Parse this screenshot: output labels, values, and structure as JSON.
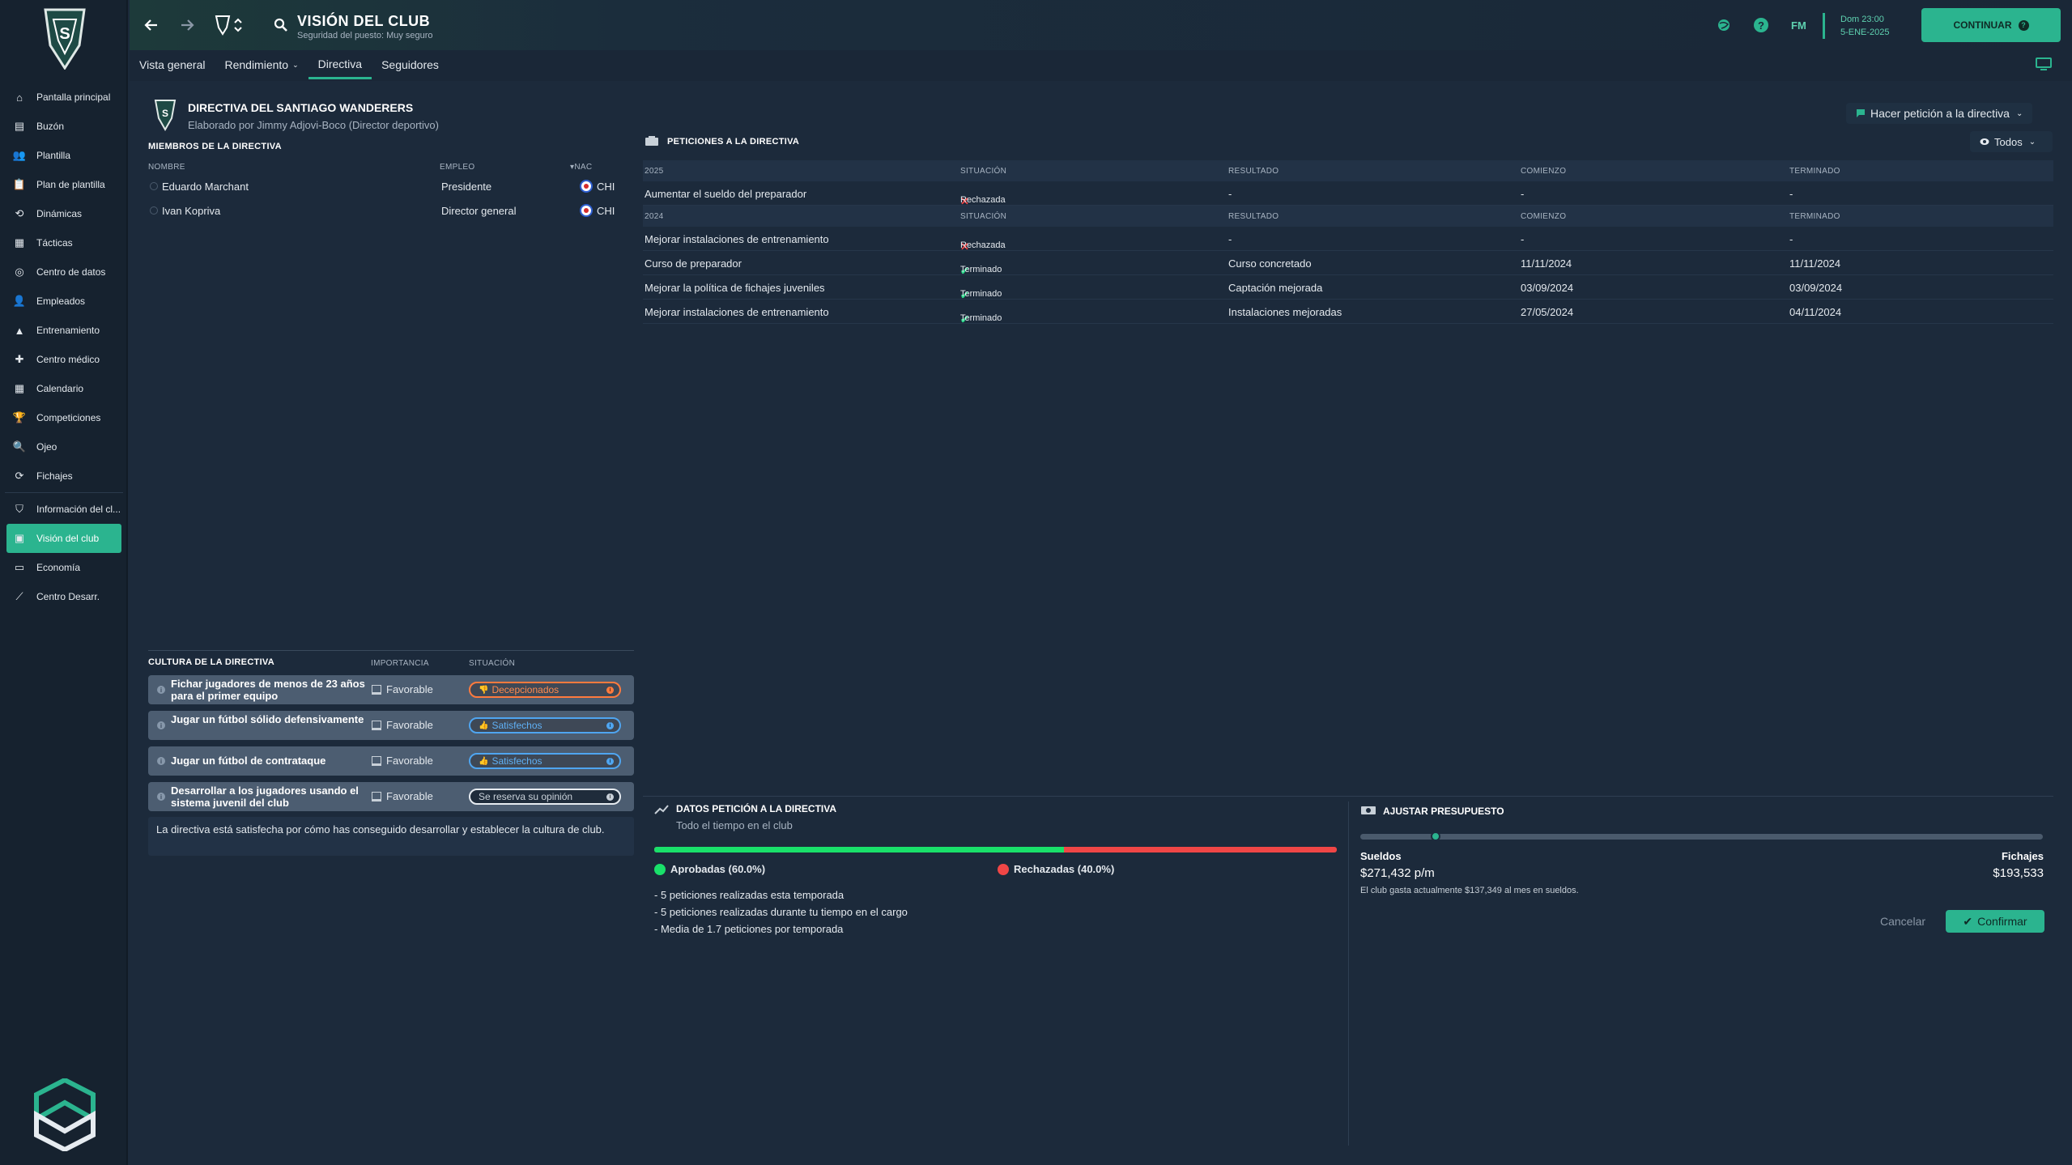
{
  "header": {
    "title": "VISIÓN DEL CLUB",
    "subtitle": "Seguridad del puesto: Muy seguro",
    "fm_label": "FM",
    "date_day": "Dom 23:00",
    "date_date": "5-ENE-2025",
    "continue_label": "CONTINUAR",
    "tabs": [
      {
        "label": "Vista general",
        "dropdown": false,
        "active": false
      },
      {
        "label": "Rendimiento",
        "dropdown": true,
        "active": false
      },
      {
        "label": "Directiva",
        "dropdown": false,
        "active": true
      },
      {
        "label": "Seguidores",
        "dropdown": false,
        "active": false
      }
    ]
  },
  "sidebar": {
    "items": [
      {
        "label": "Pantalla principal",
        "icon": "home-icon"
      },
      {
        "label": "Buzón",
        "icon": "inbox-icon"
      },
      {
        "label": "Plantilla",
        "icon": "squad-icon"
      },
      {
        "label": "Plan de plantilla",
        "icon": "clipboard-icon"
      },
      {
        "label": "Dinámicas",
        "icon": "dynamics-icon"
      },
      {
        "label": "Tácticas",
        "icon": "tactics-icon"
      },
      {
        "label": "Centro de datos",
        "icon": "data-icon"
      },
      {
        "label": "Empleados",
        "icon": "staff-icon"
      },
      {
        "label": "Entrenamiento",
        "icon": "training-icon"
      },
      {
        "label": "Centro médico",
        "icon": "medical-icon"
      },
      {
        "label": "Calendario",
        "icon": "calendar-icon"
      },
      {
        "label": "Competiciones",
        "icon": "trophy-icon"
      },
      {
        "label": "Ojeo",
        "icon": "scouting-icon"
      },
      {
        "label": "Fichajes",
        "icon": "transfers-icon"
      },
      {
        "label": "Información del cl...",
        "icon": "club-info-icon"
      },
      {
        "label": "Visión del club",
        "icon": "club-vision-icon"
      },
      {
        "label": "Economía",
        "icon": "finance-icon"
      },
      {
        "label": "Centro Desarr.",
        "icon": "development-icon"
      }
    ]
  },
  "board": {
    "title": "DIRECTIVA DEL SANTIAGO WANDERERS",
    "author": "Elaborado por Jimmy Adjovi-Boco (Director deportivo)",
    "members_title": "MIEMBROS DE LA DIRECTIVA",
    "col_name": "NOMBRE",
    "col_job": "EMPLEO",
    "col_nat": "NAC",
    "members": [
      {
        "name": "Eduardo Marchant",
        "job": "Presidente",
        "nat": "CHI"
      },
      {
        "name": "Ivan Kopriva",
        "job": "Director general",
        "nat": "CHI"
      }
    ]
  },
  "requests": {
    "title": "PETICIONES A LA DIRECTIVA",
    "make_request_label": "Hacer petición a la directiva",
    "filter_label": "Todos",
    "col_status": "SITUACIÓN",
    "col_result": "RESULTADO",
    "col_start": "COMIENZO",
    "col_end": "TERMINADO",
    "groups": [
      {
        "year": "2025",
        "rows": [
          {
            "request": "Aumentar el sueldo del preparador",
            "status": "Rechazada",
            "ok": false,
            "result": "-",
            "start": "-",
            "end": "-"
          }
        ]
      },
      {
        "year": "2024",
        "rows": [
          {
            "request": "Mejorar instalaciones de entrenamiento",
            "status": "Rechazada",
            "ok": false,
            "result": "-",
            "start": "-",
            "end": "-"
          },
          {
            "request": "Curso de preparador",
            "status": "Terminado",
            "ok": true,
            "result": "Curso concretado",
            "start": "11/11/2024",
            "end": "11/11/2024"
          },
          {
            "request": "Mejorar la política de fichajes juveniles",
            "status": "Terminado",
            "ok": true,
            "result": "Captación mejorada",
            "start": "03/09/2024",
            "end": "03/09/2024"
          },
          {
            "request": "Mejorar instalaciones de entrenamiento",
            "status": "Terminado",
            "ok": true,
            "result": "Instalaciones mejoradas",
            "start": "27/05/2024",
            "end": "04/11/2024"
          }
        ]
      }
    ]
  },
  "culture": {
    "title": "CULTURA DE LA DIRECTIVA",
    "col_importance": "IMPORTANCIA",
    "col_status": "SITUACIÓN",
    "rows": [
      {
        "text": "Fichar jugadores de menos de 23 años para el primer equipo",
        "importance": "Favorable",
        "status": "Decepcionados",
        "tone": "orange"
      },
      {
        "text": "Jugar un fútbol sólido defensivamente",
        "importance": "Favorable",
        "status": "Satisfechos",
        "tone": "blue"
      },
      {
        "text": "Jugar un fútbol de contrataque",
        "importance": "Favorable",
        "status": "Satisfechos",
        "tone": "blue"
      },
      {
        "text": "Desarrollar a los jugadores usando el sistema juvenil del club",
        "importance": "Favorable",
        "status": "Se reserva su opinión",
        "tone": "white"
      }
    ],
    "summary": "La directiva está satisfecha por cómo has conseguido desarrollar y establecer la cultura de club."
  },
  "request_data": {
    "title": "DATOS PETICIÓN A LA DIRECTIVA",
    "subtitle": "Todo el tiempo en el club",
    "approved_fraction": 0.6,
    "approved_label": "Aprobadas (60.0%)",
    "rejected_label": "Rechazadas (40.0%)",
    "approved_color": "#19e06a",
    "rejected_color": "#f04646",
    "bullets": [
      "- 5 peticiones realizadas esta temporada",
      "- 5 peticiones realizadas durante tu tiempo en el cargo",
      "- Media de 1.7 peticiones por temporada"
    ]
  },
  "budget": {
    "title": "AJUSTAR PRESUPUESTO",
    "slider_fraction": 0.11,
    "wages_label": "Sueldos",
    "wages_value": "$271,432 p/m",
    "transfers_label": "Fichajes",
    "transfers_value": "$193,533",
    "note": "El club gasta actualmente $137,349 al mes en sueldos.",
    "cancel_label": "Cancelar",
    "confirm_label": "Confirmar"
  },
  "colors": {
    "accent": "#2bb48f",
    "background": "#1c2a3b"
  }
}
